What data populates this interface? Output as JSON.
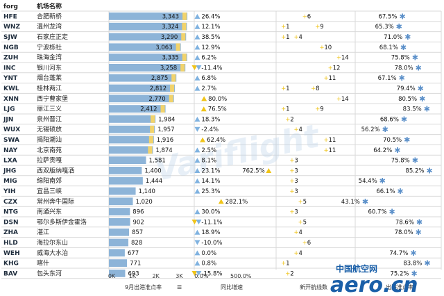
{
  "header": {
    "col_code": "forg",
    "col_name": "机场名称"
  },
  "footer": {
    "m1_label": "9月出港准点率",
    "m2_label": "同比增速",
    "m3_label": "新开航线数",
    "m4_label": "出港准点率"
  },
  "brand": {
    "line1": "中国航空网",
    "line2": "aero.cn",
    "watermark": "Variflight"
  },
  "colors": {
    "bar": "#8db4d8",
    "bar_highlight": "#f2d36b",
    "triangle": "#7fb2e0",
    "warn": "#f0c419",
    "plus": "#f0c419",
    "star": "#5a8fc9"
  },
  "chart_data": [
    {
      "type": "bar",
      "title": "",
      "xlabel": "9月出港准点率",
      "tick_labels": [
        "0K",
        "1K",
        "2K",
        "3K"
      ],
      "xlim": [
        0,
        3400
      ],
      "categories": [
        "HFE",
        "WNZ",
        "SJW",
        "NGB",
        "ZUH",
        "INC",
        "YNT",
        "KWL",
        "XNN",
        "LJG",
        "JJN",
        "WUX",
        "SWA",
        "NAY",
        "LXA",
        "JHG",
        "MIG",
        "YIH",
        "CZX",
        "NTG",
        "DSN",
        "ZHA",
        "HLD",
        "WEH",
        "KHG",
        "BAV"
      ],
      "names": [
        "合肥新桥",
        "温州龙湾",
        "石家庄正定",
        "宁波栎社",
        "珠海金湾",
        "银川河东",
        "烟台蓬莱",
        "桂林两江",
        "西宁曹家堡",
        "丽江三义",
        "泉州晋江",
        "无锡硕放",
        "揭阳潮汕",
        "北京南苑",
        "拉萨贡嘎",
        "西双版纳嘎洒",
        "绵阳南郊",
        "宜昌三峡",
        "常州奔牛国际",
        "南通兴东",
        "鄂尔多斯伊金霍洛",
        "湛江",
        "海拉尔东山",
        "威海大水泊",
        "喀什",
        "包头东河"
      ],
      "values": [
        3343,
        3324,
        3290,
        3063,
        3335,
        3258,
        2875,
        2812,
        2770,
        2412,
        1984,
        1957,
        1916,
        1874,
        1581,
        1400,
        1444,
        1140,
        1020,
        896,
        902,
        857,
        828,
        677,
        771,
        693
      ]
    },
    {
      "type": "bar",
      "xlabel": "同比增速",
      "tick_labels": [
        "0.0%",
        "500.0%"
      ],
      "xlim": [
        -20,
        900
      ],
      "values": [
        26.4,
        12.1,
        38.5,
        12.9,
        6.2,
        -11.4,
        6.8,
        2.7,
        80.0,
        76.5,
        18.3,
        -2.4,
        62.4,
        2.5,
        8.1,
        23.1,
        14.1,
        25.3,
        282.1,
        30.0,
        -11.1,
        18.9,
        -10.0,
        0.0,
        0.8,
        -15.8
      ],
      "labels": [
        "26.4%",
        "12.1%",
        "38.5%",
        "12.9%",
        "6.2%",
        "-11.4%",
        "6.8%",
        "2.7%",
        "80.0%",
        "76.5%",
        "18.3%",
        "-2.4%",
        "62.4%",
        "2.5%",
        "8.1%",
        "23.1%",
        "14.1%",
        "25.3%",
        "282.1%",
        "30.0%",
        "-11.1%",
        "18.9%",
        "-10.0%",
        "0.0%",
        "0.8%",
        "-15.8%"
      ],
      "annotations": [
        {
          "row": 15,
          "value": 762.5,
          "label": "762.5%"
        }
      ]
    },
    {
      "type": "scatter",
      "xlabel": "新开航线数",
      "xlim": [
        0,
        15
      ],
      "series": [
        {
          "values": [
            null,
            1,
            1,
            null,
            null,
            null,
            null,
            1,
            null,
            1,
            null,
            null,
            null,
            null,
            null,
            null,
            null,
            null,
            null,
            null,
            null,
            null,
            null,
            null,
            null,
            null
          ],
          "labels": [
            "",
            "1",
            "1",
            "",
            "",
            "",
            "",
            "1",
            "",
            "1",
            "",
            "",
            "",
            "",
            "",
            "",
            "",
            "",
            "",
            "",
            "",
            "",
            "",
            "",
            "",
            ""
          ]
        },
        {
          "values": [
            6,
            9,
            4,
            10,
            14,
            12,
            11,
            8,
            14,
            9,
            2,
            4,
            11,
            11,
            3,
            3,
            3,
            3,
            5,
            3,
            5,
            4,
            6,
            4,
            1,
            2
          ],
          "labels": [
            "6",
            "9",
            "4",
            "10",
            "14",
            "12",
            "11",
            "8",
            "14",
            "9",
            "2",
            "4",
            "11",
            "11",
            "3",
            "3",
            "3",
            "3",
            "5",
            "3",
            "5",
            "4",
            "6",
            "4",
            "1",
            "2"
          ]
        }
      ]
    },
    {
      "type": "scatter",
      "xlabel": "出港准点率",
      "xlim": [
        40,
        90
      ],
      "values": [
        67.5,
        65.3,
        71.0,
        68.1,
        75.8,
        78.0,
        67.1,
        79.4,
        80.5,
        83.5,
        68.6,
        56.2,
        70.5,
        64.2,
        75.8,
        85.2,
        54.4,
        66.1,
        43.1,
        60.7,
        78.6,
        78.0,
        null,
        74.7,
        83.8,
        75.2
      ],
      "labels": [
        "67.5%",
        "65.3%",
        "71.0%",
        "68.1%",
        "75.8%",
        "78.0%",
        "67.1%",
        "79.4%",
        "80.5%",
        "83.5%",
        "68.6%",
        "56.2%",
        "70.5%",
        "64.2%",
        "75.8%",
        "85.2%",
        "54.4%",
        "66.1%",
        "43.1%",
        "60.7%",
        "78.6%",
        "78.0%",
        "",
        "74.7%",
        "83.8%",
        "75.2%"
      ]
    }
  ]
}
